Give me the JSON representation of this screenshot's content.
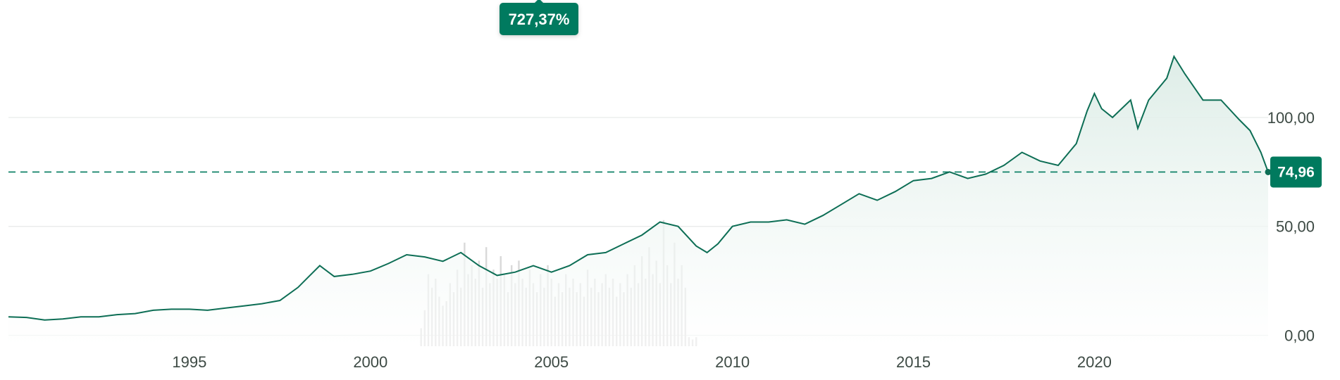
{
  "colors": {
    "accent": "#007a5e",
    "line": "#0d6e55",
    "area_top": "#dcece6",
    "volume": "#d9d9d9",
    "grid": "#e6e9e8",
    "text": "#3d4a44"
  },
  "performance_badge": "727,37%",
  "current_value_badge": "74,96",
  "chart_data": {
    "type": "area",
    "title": "",
    "xlabel": "",
    "ylabel": "",
    "xlim": [
      1990.0,
      2024.8
    ],
    "ylim": [
      -5,
      141
    ],
    "y_ticks": [
      {
        "value": 0,
        "label": "0,00"
      },
      {
        "value": 50,
        "label": "50,00"
      },
      {
        "value": 100,
        "label": "100,00"
      }
    ],
    "x_ticks": [
      {
        "value": 1995,
        "label": "1995"
      },
      {
        "value": 2000,
        "label": "2000"
      },
      {
        "value": 2005,
        "label": "2005"
      },
      {
        "value": 2010,
        "label": "2010"
      },
      {
        "value": 2015,
        "label": "2015"
      },
      {
        "value": 2020,
        "label": "2020"
      }
    ],
    "grid": true,
    "reference_line": {
      "value": 74.96,
      "style": "dashed"
    },
    "series": [
      {
        "points": [
          [
            1990.0,
            8.5
          ],
          [
            1990.5,
            8.2
          ],
          [
            1991.0,
            7.0
          ],
          [
            1991.5,
            7.5
          ],
          [
            1992.0,
            8.5
          ],
          [
            1992.5,
            8.5
          ],
          [
            1993.0,
            9.5
          ],
          [
            1993.5,
            10.0
          ],
          [
            1994.0,
            11.5
          ],
          [
            1994.5,
            12.0
          ],
          [
            1995.0,
            12.0
          ],
          [
            1995.5,
            11.5
          ],
          [
            1996.0,
            12.5
          ],
          [
            1996.5,
            13.5
          ],
          [
            1997.0,
            14.5
          ],
          [
            1997.5,
            16.0
          ],
          [
            1998.0,
            22.0
          ],
          [
            1998.3,
            27.0
          ],
          [
            1998.6,
            32.0
          ],
          [
            1999.0,
            27.0
          ],
          [
            1999.5,
            28.0
          ],
          [
            2000.0,
            29.5
          ],
          [
            2000.5,
            33.0
          ],
          [
            2001.0,
            37.0
          ],
          [
            2001.5,
            36.0
          ],
          [
            2002.0,
            34.0
          ],
          [
            2002.5,
            38.0
          ],
          [
            2003.0,
            32.0
          ],
          [
            2003.5,
            27.5
          ],
          [
            2004.0,
            29.0
          ],
          [
            2004.5,
            32.0
          ],
          [
            2005.0,
            29.0
          ],
          [
            2005.5,
            32.0
          ],
          [
            2006.0,
            37.0
          ],
          [
            2006.5,
            38.0
          ],
          [
            2007.0,
            42.0
          ],
          [
            2007.5,
            46.0
          ],
          [
            2008.0,
            52.0
          ],
          [
            2008.5,
            50.0
          ],
          [
            2009.0,
            41.0
          ],
          [
            2009.3,
            38.0
          ],
          [
            2009.6,
            42.0
          ],
          [
            2010.0,
            50.0
          ],
          [
            2010.5,
            52.0
          ],
          [
            2011.0,
            52.0
          ],
          [
            2011.5,
            53.0
          ],
          [
            2012.0,
            51.0
          ],
          [
            2012.5,
            55.0
          ],
          [
            2013.0,
            60.0
          ],
          [
            2013.5,
            65.0
          ],
          [
            2014.0,
            62.0
          ],
          [
            2014.5,
            66.0
          ],
          [
            2015.0,
            71.0
          ],
          [
            2015.5,
            72.0
          ],
          [
            2016.0,
            75.0
          ],
          [
            2016.5,
            72.0
          ],
          [
            2017.0,
            74.0
          ],
          [
            2017.5,
            78.0
          ],
          [
            2018.0,
            84.0
          ],
          [
            2018.5,
            80.0
          ],
          [
            2019.0,
            78.0
          ],
          [
            2019.5,
            88.0
          ],
          [
            2019.8,
            103.0
          ],
          [
            2020.0,
            111.0
          ],
          [
            2020.2,
            104.0
          ],
          [
            2020.5,
            100.0
          ],
          [
            2021.0,
            108.0
          ],
          [
            2021.2,
            95.0
          ],
          [
            2021.5,
            108.0
          ],
          [
            2022.0,
            118.0
          ],
          [
            2022.2,
            128.0
          ],
          [
            2022.5,
            120.0
          ],
          [
            2023.0,
            108.0
          ],
          [
            2023.5,
            108.0
          ],
          [
            2024.0,
            99.0
          ],
          [
            2024.3,
            94.0
          ],
          [
            2024.6,
            84.0
          ],
          [
            2024.8,
            74.96
          ]
        ]
      }
    ],
    "volume": [
      [
        2001.4,
        4
      ],
      [
        2001.5,
        8
      ],
      [
        2001.6,
        16
      ],
      [
        2001.7,
        13
      ],
      [
        2001.8,
        15
      ],
      [
        2001.9,
        11
      ],
      [
        2002.0,
        9
      ],
      [
        2002.1,
        10
      ],
      [
        2002.2,
        14
      ],
      [
        2002.3,
        12
      ],
      [
        2002.4,
        17
      ],
      [
        2002.5,
        13
      ],
      [
        2002.6,
        23
      ],
      [
        2002.7,
        16
      ],
      [
        2002.8,
        18
      ],
      [
        2002.9,
        15
      ],
      [
        2003.0,
        19
      ],
      [
        2003.1,
        13
      ],
      [
        2003.2,
        22
      ],
      [
        2003.3,
        14
      ],
      [
        2003.4,
        17
      ],
      [
        2003.5,
        15
      ],
      [
        2003.6,
        20
      ],
      [
        2003.7,
        16
      ],
      [
        2003.8,
        12
      ],
      [
        2003.9,
        18
      ],
      [
        2004.0,
        14
      ],
      [
        2004.1,
        19
      ],
      [
        2004.2,
        15
      ],
      [
        2004.3,
        13
      ],
      [
        2004.4,
        17
      ],
      [
        2004.5,
        14
      ],
      [
        2004.6,
        12
      ],
      [
        2004.7,
        16
      ],
      [
        2004.8,
        13
      ],
      [
        2004.9,
        18
      ],
      [
        2005.0,
        15
      ],
      [
        2005.1,
        11
      ],
      [
        2005.2,
        14
      ],
      [
        2005.3,
        12
      ],
      [
        2005.4,
        16
      ],
      [
        2005.5,
        13
      ],
      [
        2005.6,
        15
      ],
      [
        2005.7,
        12
      ],
      [
        2005.8,
        14
      ],
      [
        2005.9,
        11
      ],
      [
        2006.0,
        17
      ],
      [
        2006.1,
        13
      ],
      [
        2006.2,
        15
      ],
      [
        2006.3,
        12
      ],
      [
        2006.4,
        14
      ],
      [
        2006.5,
        16
      ],
      [
        2006.6,
        13
      ],
      [
        2006.7,
        15
      ],
      [
        2006.8,
        11
      ],
      [
        2006.9,
        14
      ],
      [
        2007.0,
        12
      ],
      [
        2007.1,
        16
      ],
      [
        2007.2,
        13
      ],
      [
        2007.3,
        18
      ],
      [
        2007.4,
        14
      ],
      [
        2007.5,
        20
      ],
      [
        2007.6,
        15
      ],
      [
        2007.7,
        22
      ],
      [
        2007.8,
        16
      ],
      [
        2007.9,
        19
      ],
      [
        2008.0,
        14
      ],
      [
        2008.1,
        28
      ],
      [
        2008.2,
        18
      ],
      [
        2008.3,
        14
      ],
      [
        2008.4,
        23
      ],
      [
        2008.5,
        15
      ],
      [
        2008.6,
        18
      ],
      [
        2008.7,
        13
      ],
      [
        2008.8,
        2
      ],
      [
        2008.9,
        1.5
      ],
      [
        2009.0,
        2
      ]
    ]
  }
}
